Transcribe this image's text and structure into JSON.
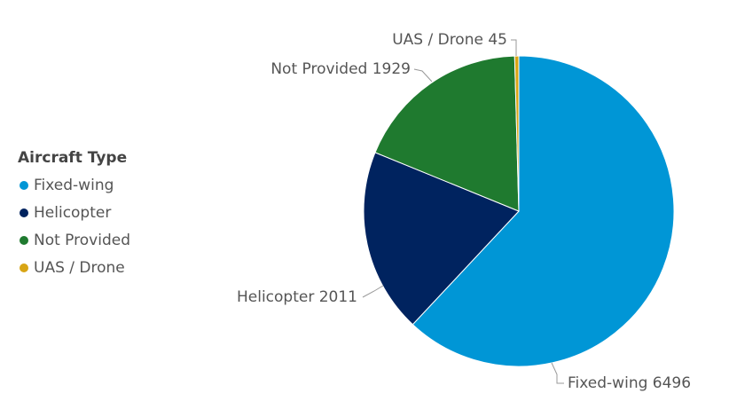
{
  "chart_data": {
    "type": "pie",
    "legend_title": "Aircraft Type",
    "categories": [
      "Fixed-wing",
      "Helicopter",
      "Not Provided",
      "UAS / Drone"
    ],
    "values": [
      6496,
      2011,
      1929,
      45
    ],
    "colors": [
      "#0096d6",
      "#00235f",
      "#1f7a2f",
      "#d8a515"
    ],
    "legend": "left"
  }
}
